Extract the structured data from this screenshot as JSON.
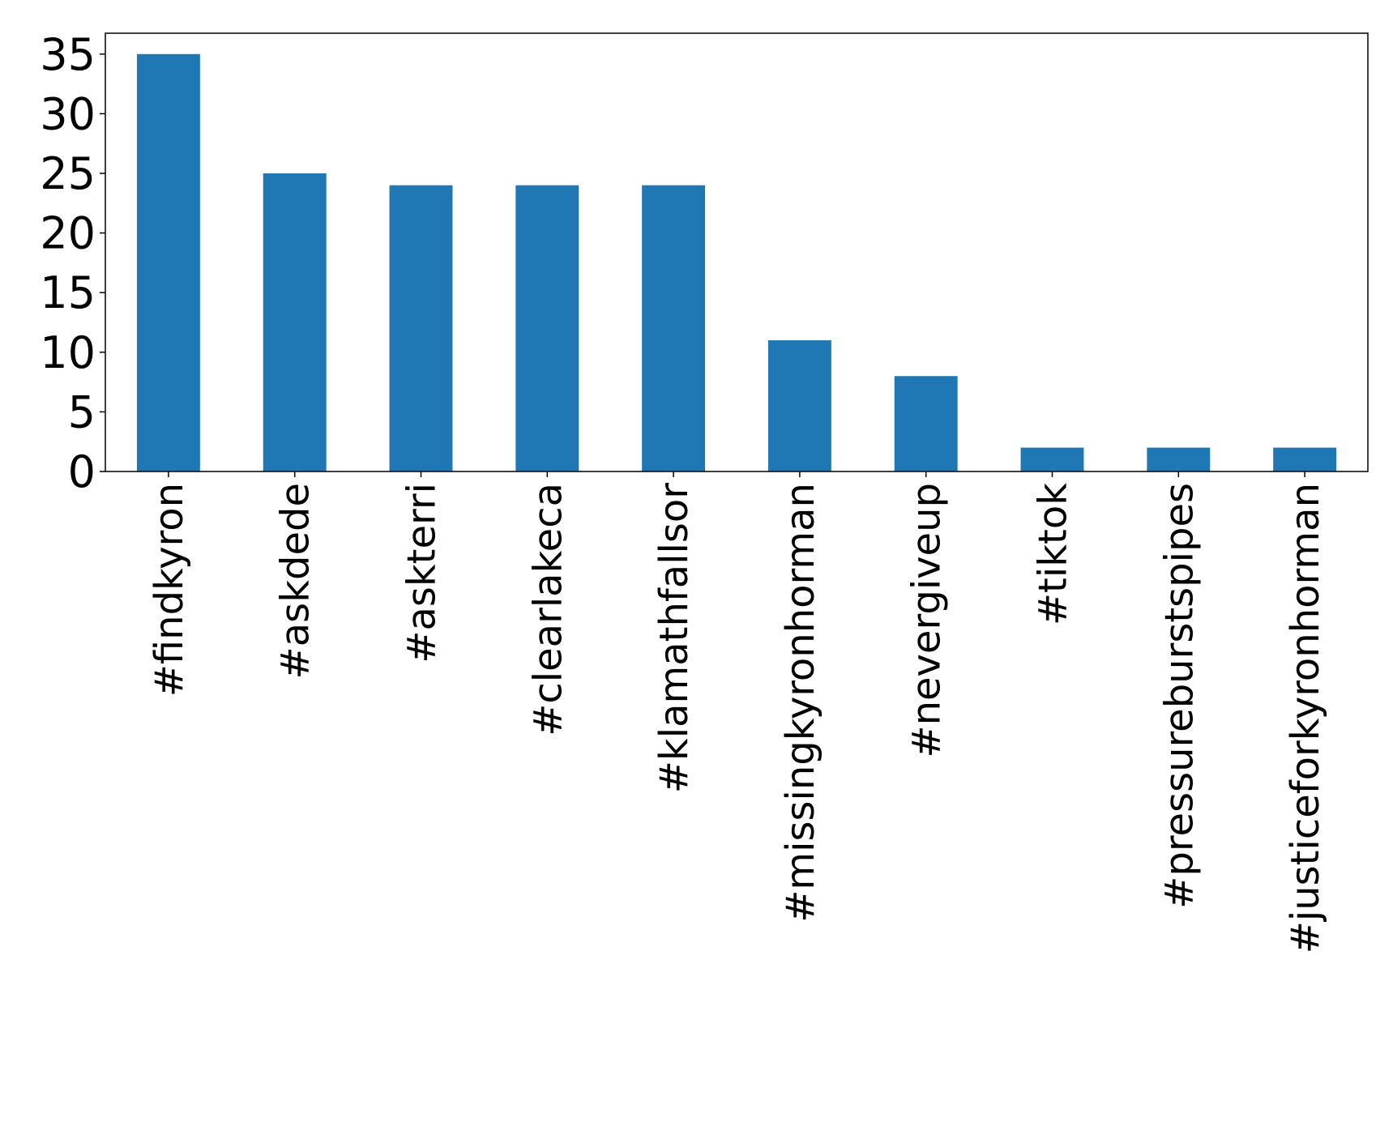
{
  "chart_data": {
    "type": "bar",
    "title": "",
    "xlabel": "",
    "ylabel": "",
    "categories": [
      "#findkyron",
      "#askdede",
      "#askterri",
      "#clearlakeca",
      "#klamathfallsor",
      "#missingkyronhorman",
      "#nevergiveup",
      "#tiktok",
      "#pressureburstspipes",
      "#justiceforkyronhorman"
    ],
    "values": [
      35,
      25,
      24,
      24,
      24,
      11,
      8,
      2,
      2,
      2
    ],
    "ylim": [
      0,
      36.75
    ],
    "yticks": [
      0,
      5,
      10,
      15,
      20,
      25,
      30,
      35
    ],
    "grid": false,
    "bar_color": "#1f77b4"
  }
}
